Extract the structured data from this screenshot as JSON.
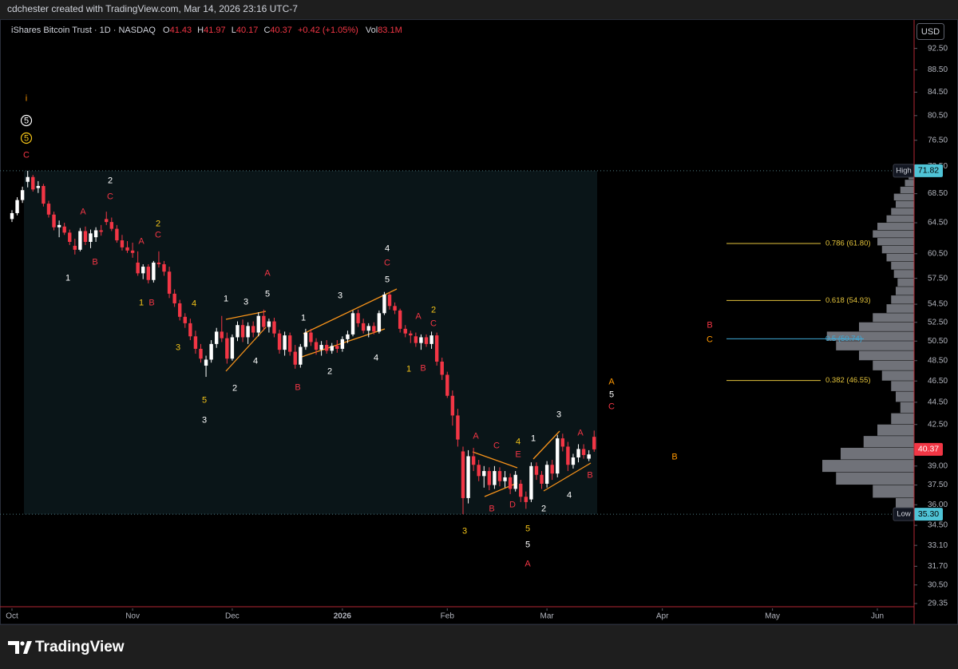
{
  "header": {
    "attribution": "cdchester created with TradingView.com, Mar 14, 2026 23:16 UTC-7"
  },
  "legend": {
    "symbol": "iShares Bitcoin Trust · 1D · NASDAQ",
    "fields": [
      {
        "key": "O",
        "value": "41.43"
      },
      {
        "key": "H",
        "value": "41.97"
      },
      {
        "key": "L",
        "value": "40.17"
      },
      {
        "key": "C",
        "value": "40.37"
      }
    ],
    "change": "+0.42 (+1.05%)",
    "volume": {
      "key": "Vol",
      "value": "83.1M"
    }
  },
  "currency": "USD",
  "chart_data": {
    "type": "candlestick",
    "log_scale": true,
    "grid": false,
    "up_color": "#ffffff",
    "down_color": "#f23645",
    "ylim": [
      29.06,
      97.3
    ],
    "yticks": [
      {
        "value": 92.5,
        "label": "92.50"
      },
      {
        "value": 88.5,
        "label": "88.50"
      },
      {
        "value": 84.5,
        "label": "84.50"
      },
      {
        "value": 80.5,
        "label": "80.50"
      },
      {
        "value": 76.5,
        "label": "76.50"
      },
      {
        "value": 72.5,
        "label": "72.50"
      },
      {
        "value": 68.5,
        "label": "68.50"
      },
      {
        "value": 64.5,
        "label": "64.50"
      },
      {
        "value": 60.5,
        "label": "60.50"
      },
      {
        "value": 57.5,
        "label": "57.50"
      },
      {
        "value": 54.5,
        "label": "54.50"
      },
      {
        "value": 52.5,
        "label": "52.50"
      },
      {
        "value": 50.5,
        "label": "50.50"
      },
      {
        "value": 48.5,
        "label": "48.50"
      },
      {
        "value": 46.5,
        "label": "46.50"
      },
      {
        "value": 44.5,
        "label": "44.50"
      },
      {
        "value": 42.5,
        "label": "42.50"
      },
      {
        "value": 39,
        "label": "39.00"
      },
      {
        "value": 37.5,
        "label": "37.50"
      },
      {
        "value": 36,
        "label": "36.00"
      },
      {
        "value": 34.5,
        "label": "34.50"
      },
      {
        "value": 33.1,
        "label": "33.10"
      },
      {
        "value": 31.7,
        "label": "31.70"
      },
      {
        "value": 30.5,
        "label": "30.50"
      },
      29.35
    ],
    "xlim": [
      -2.28,
      172
    ],
    "xticks": [
      {
        "value": 0,
        "label": "Oct"
      },
      {
        "value": 23,
        "label": "Nov"
      },
      {
        "value": 42,
        "label": "Dec"
      },
      {
        "value": 63,
        "label": "2026"
      },
      {
        "value": 83,
        "label": "Feb"
      },
      {
        "value": 102,
        "label": "Mar"
      },
      {
        "value": 124,
        "label": "Apr"
      },
      {
        "value": 145,
        "label": "May"
      },
      {
        "value": 165,
        "label": "Jun"
      }
    ],
    "open": [
      65.0,
      65.8,
      67.6,
      70.2,
      70.9,
      69.3,
      69.6,
      67.1,
      65.6,
      63.9,
      64.0,
      63.2,
      61.5,
      61.0,
      63.4,
      62.0,
      62.6,
      63.5,
      65.0,
      64.6,
      63.7,
      62.2,
      61.3,
      60.9,
      59.4,
      58.1,
      58.9,
      57.3,
      59.4,
      59.2,
      58.3,
      55.7,
      54.6,
      53.1,
      52.4,
      51.0,
      49.7,
      48.0,
      48.6,
      50.2,
      51.5,
      50.8,
      48.7,
      50.9,
      52.2,
      50.9,
      52.1,
      51.4,
      53.2,
      52.0,
      52.6,
      51.3,
      49.6,
      51.1,
      49.4,
      48.1,
      49.9,
      51.4,
      50.4,
      49.6,
      50.1,
      49.5,
      50.0,
      49.7,
      50.7,
      51.2,
      53.5,
      52.4,
      51.6,
      52.1,
      51.5,
      53.5,
      55.6,
      54.3,
      53.8,
      51.8,
      51.3,
      51.0,
      50.3,
      50.9,
      50.2,
      51.1,
      48.4,
      47.1,
      45.1,
      43.3,
      40.2,
      36.5,
      39.8,
      39.1,
      38.2,
      38.6,
      37.5,
      38.6,
      37.8,
      38.1,
      37.2,
      37.6,
      36.6,
      36.4,
      39.0,
      38.3,
      37.6,
      39.1,
      38.4,
      41.3,
      40.6,
      39.1,
      39.7,
      40.4,
      39.6,
      41.43
    ],
    "high": [
      66.2,
      68.0,
      69.5,
      71.82,
      71.2,
      70.3,
      69.9,
      67.5,
      66.0,
      64.8,
      64.5,
      63.6,
      62.4,
      63.8,
      64.0,
      63.6,
      63.9,
      64.2,
      66.0,
      65.2,
      64.2,
      62.9,
      62.1,
      61.9,
      60.8,
      59.2,
      59.2,
      59.6,
      60.8,
      59.6,
      58.9,
      56.2,
      55.0,
      53.5,
      52.9,
      51.6,
      50.2,
      49.0,
      50.6,
      51.9,
      53.2,
      51.4,
      51.2,
      52.6,
      52.8,
      52.5,
      52.6,
      53.6,
      53.9,
      52.9,
      53.0,
      51.7,
      51.5,
      51.4,
      50.1,
      50.2,
      51.8,
      51.8,
      50.8,
      50.5,
      50.6,
      50.3,
      50.6,
      51.0,
      51.6,
      53.8,
      53.9,
      52.9,
      52.4,
      52.5,
      53.8,
      55.9,
      55.9,
      54.7,
      54.0,
      52.2,
      51.6,
      51.4,
      51.2,
      51.2,
      51.5,
      51.4,
      48.8,
      47.4,
      45.6,
      43.9,
      40.6,
      40.3,
      40.5,
      39.5,
      39.0,
      38.9,
      39.0,
      38.9,
      38.6,
      38.4,
      38.6,
      37.9,
      37.0,
      39.3,
      39.3,
      38.6,
      39.4,
      39.5,
      41.6,
      41.7,
      41.0,
      40.0,
      40.8,
      40.8,
      40.3,
      41.97
    ],
    "low": [
      64.6,
      65.5,
      67.2,
      69.4,
      68.8,
      68.6,
      66.7,
      65.2,
      63.5,
      62.6,
      62.9,
      61.6,
      60.4,
      60.8,
      61.6,
      61.2,
      62.0,
      62.8,
      64.2,
      63.4,
      61.9,
      60.9,
      60.6,
      60.0,
      57.8,
      57.4,
      56.9,
      57.0,
      58.8,
      57.8,
      55.2,
      54.2,
      52.7,
      51.9,
      50.6,
      49.2,
      48.3,
      46.9,
      48.3,
      49.8,
      50.4,
      48.2,
      48.5,
      50.5,
      50.4,
      50.2,
      50.9,
      51.0,
      51.6,
      51.4,
      50.9,
      49.2,
      49.0,
      49.0,
      47.7,
      47.8,
      49.6,
      50.0,
      49.1,
      49.0,
      49.2,
      49.2,
      49.3,
      49.4,
      50.3,
      51.0,
      52.0,
      51.3,
      50.9,
      51.2,
      51.3,
      53.3,
      53.9,
      53.4,
      51.4,
      50.9,
      50.3,
      49.9,
      49.6,
      49.9,
      49.7,
      48.0,
      46.6,
      44.9,
      42.4,
      40.6,
      35.3,
      36.1,
      38.6,
      37.8,
      37.3,
      37.1,
      37.2,
      37.4,
      37.3,
      36.8,
      37.0,
      36.2,
      35.7,
      36.2,
      37.9,
      37.2,
      37.3,
      37.9,
      38.1,
      40.2,
      38.6,
      38.8,
      39.3,
      39.6,
      39.4,
      40.17
    ],
    "close": [
      65.8,
      67.6,
      69.0,
      70.9,
      69.1,
      69.6,
      67.1,
      65.6,
      63.9,
      64.2,
      63.2,
      62.0,
      61.0,
      63.4,
      62.0,
      63.1,
      63.5,
      63.3,
      64.6,
      63.7,
      62.2,
      61.3,
      60.9,
      60.6,
      58.1,
      58.9,
      57.3,
      59.4,
      59.2,
      58.3,
      55.7,
      54.6,
      53.1,
      52.4,
      51.0,
      49.7,
      48.7,
      48.6,
      50.2,
      51.5,
      50.8,
      48.7,
      50.9,
      52.2,
      50.9,
      52.1,
      51.4,
      53.2,
      52.0,
      52.6,
      51.3,
      49.6,
      51.1,
      49.4,
      48.1,
      49.9,
      51.4,
      50.4,
      49.6,
      50.1,
      49.5,
      50.0,
      49.7,
      50.7,
      51.2,
      53.5,
      52.4,
      51.6,
      52.1,
      51.5,
      53.5,
      55.6,
      54.3,
      53.8,
      51.8,
      51.3,
      51.1,
      50.3,
      50.9,
      50.2,
      51.1,
      48.4,
      47.1,
      45.1,
      43.3,
      41.2,
      36.5,
      39.8,
      39.1,
      38.2,
      38.6,
      37.5,
      38.6,
      37.8,
      38.1,
      37.2,
      38.3,
      36.6,
      36.2,
      39.0,
      38.3,
      37.6,
      39.1,
      38.4,
      41.3,
      40.6,
      39.1,
      39.7,
      40.4,
      39.9,
      39.95,
      40.37
    ],
    "high_tag": {
      "label": "High",
      "price": 71.82
    },
    "low_tag": {
      "label": "Low",
      "price": {
        "value": 35.3,
        "label": "35.30"
      }
    },
    "last_price": 40.37,
    "fib_levels": [
      {
        "label": "0.786 (61.80)",
        "value": 61.8,
        "color": "#e3c33b"
      },
      {
        "label": "0.618 (54.93)",
        "value": 54.93,
        "color": "#e3c33b"
      },
      {
        "label": "0.5 (50.74)",
        "value": 50.74,
        "color": "#3fa9d6"
      },
      {
        "label": "0.382 (46.55)",
        "value": 46.55,
        "color": "#e3c33b"
      }
    ],
    "volume_profile": {
      "color": "#9598a1",
      "prices": [
        36,
        37,
        38,
        39,
        40,
        41,
        42,
        43,
        44,
        45,
        46,
        47,
        48,
        49,
        50,
        51,
        52,
        53,
        54,
        55,
        56,
        57,
        58,
        59,
        60,
        61,
        62,
        63,
        64,
        65,
        66,
        67,
        68,
        69,
        70,
        71
      ],
      "volumes": [
        20,
        45,
        85,
        100,
        80,
        55,
        40,
        25,
        15,
        20,
        25,
        35,
        45,
        60,
        85,
        95,
        60,
        45,
        30,
        25,
        20,
        18,
        22,
        25,
        30,
        35,
        40,
        45,
        40,
        30,
        25,
        20,
        22,
        15,
        10,
        6
      ]
    },
    "wave_labels": [
      {
        "text": "i",
        "color": "#ff9800"
      },
      {
        "text": "5",
        "color": "#ffffff",
        "circled": true
      },
      {
        "text": "5",
        "color": "#f5c518",
        "circled": true
      },
      {
        "text": "C",
        "color": "#f23645"
      },
      {
        "text": "2",
        "color": "#ffffff"
      },
      {
        "text": "C",
        "color": "#f23645"
      },
      {
        "text": "A",
        "color": "#f23645"
      },
      {
        "text": "B",
        "color": "#f23645"
      },
      {
        "text": "1",
        "color": "#ffffff"
      },
      {
        "text": "2",
        "color": "#f5c518"
      },
      {
        "text": "C",
        "color": "#f23645"
      },
      {
        "text": "A",
        "color": "#f23645"
      },
      {
        "text": "1",
        "color": "#f5c518"
      },
      {
        "text": "B",
        "color": "#f23645"
      },
      {
        "text": "4",
        "color": "#f5c518"
      },
      {
        "text": "3",
        "color": "#f5c518"
      },
      {
        "text": "5",
        "color": "#f5c518"
      },
      {
        "text": "3",
        "color": "#ffffff"
      },
      {
        "text": "1",
        "color": "#ffffff"
      },
      {
        "text": "3",
        "color": "#ffffff"
      },
      {
        "text": "A",
        "color": "#f23645"
      },
      {
        "text": "5",
        "color": "#ffffff"
      },
      {
        "text": "4",
        "color": "#ffffff"
      },
      {
        "text": "2",
        "color": "#ffffff"
      },
      {
        "text": "B",
        "color": "#f23645"
      },
      {
        "text": "1",
        "color": "#ffffff"
      },
      {
        "text": "3",
        "color": "#ffffff"
      },
      {
        "text": "2",
        "color": "#ffffff"
      },
      {
        "text": "4",
        "color": "#ffffff"
      },
      {
        "text": "C",
        "color": "#f23645"
      },
      {
        "text": "5",
        "color": "#ffffff"
      },
      {
        "text": "4",
        "color": "#ffffff"
      },
      {
        "text": "2",
        "color": "#f5c518"
      },
      {
        "text": "C",
        "color": "#f23645"
      },
      {
        "text": "A",
        "color": "#f23645"
      },
      {
        "text": "1",
        "color": "#f5c518"
      },
      {
        "text": "B",
        "color": "#f23645"
      },
      {
        "text": "A",
        "color": "#f23645"
      },
      {
        "text": "C",
        "color": "#f23645"
      },
      {
        "text": "4",
        "color": "#f5c518"
      },
      {
        "text": "E",
        "color": "#f23645"
      },
      {
        "text": "B",
        "color": "#f23645"
      },
      {
        "text": "D",
        "color": "#f23645"
      },
      {
        "text": "3",
        "color": "#f5c518"
      },
      {
        "text": "5",
        "color": "#f5c518"
      },
      {
        "text": "5",
        "color": "#ffffff"
      },
      {
        "text": "A",
        "color": "#f23645"
      },
      {
        "text": "1",
        "color": "#ffffff"
      },
      {
        "text": "3",
        "color": "#ffffff"
      },
      {
        "text": "2",
        "color": "#ffffff"
      },
      {
        "text": "A",
        "color": "#f23645"
      },
      {
        "text": "B",
        "color": "#f23645"
      },
      {
        "text": "4",
        "color": "#ffffff"
      },
      {
        "text": "A",
        "color": "#ff9800"
      },
      {
        "text": "5",
        "color": "#ffffff"
      },
      {
        "text": "C",
        "color": "#f23645"
      },
      {
        "text": "B",
        "color": "#f23645"
      },
      {
        "text": "C",
        "color": "#ff9800"
      },
      {
        "text": "B",
        "color": "#ff9800"
      }
    ]
  },
  "footer": {
    "brand": "TradingView"
  }
}
